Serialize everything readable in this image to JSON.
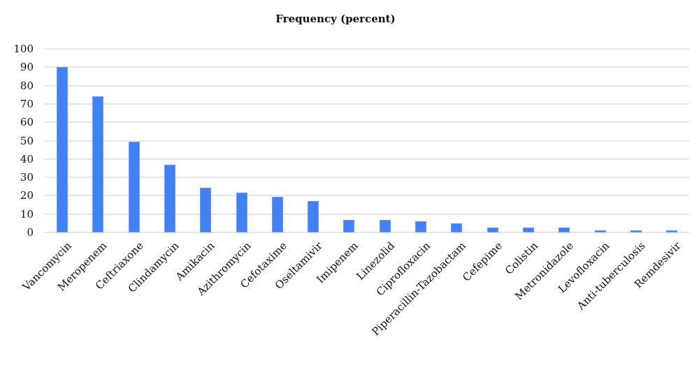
{
  "chart_data": {
    "type": "bar",
    "title": "Frequency (percent)",
    "xlabel": "",
    "ylabel": "",
    "ylim": [
      0,
      100
    ],
    "yticks": [
      0,
      10,
      20,
      30,
      40,
      50,
      60,
      70,
      80,
      90,
      100
    ],
    "grid": true,
    "legend": null,
    "bar_color": "#4280f5",
    "categories": [
      "Vancomycin",
      "Meropenem",
      "Ceftriaxone",
      "Clindamycin",
      "Amikacin",
      "Azithromycin",
      "Cefotaxime",
      "Oseltamivir",
      "Imipenem",
      "Linezolid",
      "Ciprofloxacin",
      "Piperacillin-Tazobactam",
      "Cefepime",
      "Colistin",
      "Metronidazole",
      "Levofloxacin",
      "Anti-tuberculosis",
      "Remdesivir"
    ],
    "values": [
      90,
      74,
      49.5,
      37,
      24.5,
      21.5,
      19.5,
      17,
      7,
      7,
      6,
      5,
      2.5,
      2.5,
      2.5,
      1,
      1,
      1
    ]
  }
}
